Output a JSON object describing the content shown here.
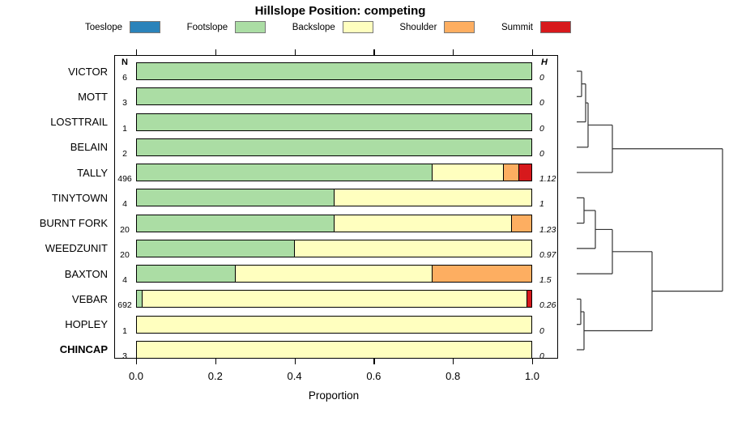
{
  "title": "Hillslope Position: competing",
  "legend": [
    {
      "label": "Toeslope",
      "color": "#2B83BA"
    },
    {
      "label": "Footslope",
      "color": "#ABDDA4"
    },
    {
      "label": "Backslope",
      "color": "#FFFFBF"
    },
    {
      "label": "Shoulder",
      "color": "#FDAE61"
    },
    {
      "label": "Summit",
      "color": "#D7191C"
    }
  ],
  "columns": {
    "n_header": "N",
    "h_header": "H"
  },
  "axis": {
    "label": "Proportion",
    "tick_labels": [
      "0.0",
      "0.2",
      "0.4",
      "0.6",
      "0.8",
      "1.0"
    ],
    "tick_values": [
      0,
      0.2,
      0.4,
      0.6,
      0.8,
      1.0
    ],
    "range": [
      0,
      1
    ]
  },
  "chart_data": {
    "type": "bar",
    "orientation": "horizontal-stacked",
    "title": "Hillslope Position: competing",
    "xlabel": "Proportion",
    "xlim": [
      0,
      1
    ],
    "grid": false,
    "legend_position": "top",
    "stack_order": [
      "Toeslope",
      "Footslope",
      "Backslope",
      "Shoulder",
      "Summit"
    ],
    "colors": {
      "Toeslope": "#2B83BA",
      "Footslope": "#ABDDA4",
      "Backslope": "#FFFFBF",
      "Shoulder": "#FDAE61",
      "Summit": "#D7191C"
    },
    "rows": [
      {
        "name": "VICTOR",
        "n": "6",
        "h": "0",
        "bold": false,
        "segments": {
          "Footslope": 1.0
        }
      },
      {
        "name": "MOTT",
        "n": "3",
        "h": "0",
        "bold": false,
        "segments": {
          "Footslope": 1.0
        }
      },
      {
        "name": "LOSTTRAIL",
        "n": "1",
        "h": "0",
        "bold": false,
        "segments": {
          "Footslope": 1.0
        }
      },
      {
        "name": "BELAIN",
        "n": "2",
        "h": "0",
        "bold": false,
        "segments": {
          "Footslope": 1.0
        }
      },
      {
        "name": "TALLY",
        "n": "496",
        "h": "1.12",
        "bold": false,
        "segments": {
          "Footslope": 0.75,
          "Backslope": 0.18,
          "Shoulder": 0.04,
          "Summit": 0.03
        }
      },
      {
        "name": "TINYTOWN",
        "n": "4",
        "h": "1",
        "bold": false,
        "segments": {
          "Footslope": 0.5,
          "Backslope": 0.5
        }
      },
      {
        "name": "BURNT FORK",
        "n": "20",
        "h": "1.23",
        "bold": false,
        "segments": {
          "Footslope": 0.5,
          "Backslope": 0.45,
          "Shoulder": 0.05
        }
      },
      {
        "name": "WEEDZUNIT",
        "n": "20",
        "h": "0.97",
        "bold": false,
        "segments": {
          "Footslope": 0.4,
          "Backslope": 0.6
        }
      },
      {
        "name": "BAXTON",
        "n": "4",
        "h": "1.5",
        "bold": false,
        "segments": {
          "Footslope": 0.25,
          "Backslope": 0.5,
          "Shoulder": 0.25
        }
      },
      {
        "name": "VEBAR",
        "n": "692",
        "h": "0.26",
        "bold": false,
        "segments": {
          "Footslope": 0.015,
          "Backslope": 0.975,
          "Summit": 0.01
        }
      },
      {
        "name": "HOPLEY",
        "n": "1",
        "h": "0",
        "bold": false,
        "segments": {
          "Backslope": 1.0
        }
      },
      {
        "name": "CHINCAP",
        "n": "3",
        "h": "0",
        "bold": true,
        "segments": {
          "Backslope": 1.0
        }
      }
    ],
    "dendrogram": {
      "line_color": "#333333",
      "segments": [
        [
          712,
          0,
          718,
          0
        ],
        [
          712,
          1,
          718,
          1
        ],
        [
          718,
          0,
          718,
          1
        ],
        [
          718,
          0.5,
          723,
          0.5
        ],
        [
          712,
          2,
          723,
          2
        ],
        [
          723,
          0.5,
          723,
          2
        ],
        [
          723,
          1.25,
          726,
          1.25
        ],
        [
          712,
          3,
          726,
          3
        ],
        [
          726,
          1.25,
          726,
          3
        ],
        [
          726,
          2.125,
          756,
          2.125
        ],
        [
          712,
          4,
          756,
          4
        ],
        [
          756,
          2.125,
          756,
          4
        ],
        [
          756,
          3.0625,
          892,
          3.0625
        ],
        [
          712,
          5,
          721,
          5
        ],
        [
          712,
          6,
          721,
          6
        ],
        [
          721,
          5,
          721,
          6
        ],
        [
          721,
          5.5,
          735,
          5.5
        ],
        [
          712,
          7,
          735,
          7
        ],
        [
          735,
          5.5,
          735,
          7
        ],
        [
          735,
          6.25,
          756,
          6.25
        ],
        [
          712,
          8,
          756,
          8
        ],
        [
          756,
          6.25,
          756,
          8
        ],
        [
          756,
          7.125,
          805,
          7.125
        ],
        [
          712,
          9,
          717,
          9
        ],
        [
          712,
          10,
          717,
          10
        ],
        [
          717,
          9,
          717,
          10
        ],
        [
          717,
          9.5,
          721,
          9.5
        ],
        [
          712,
          11,
          721,
          11
        ],
        [
          721,
          9.5,
          721,
          11
        ],
        [
          721,
          10.25,
          805,
          10.25
        ],
        [
          805,
          7.125,
          805,
          10.25
        ],
        [
          805,
          8.6875,
          892,
          8.6875
        ],
        [
          892,
          3.0625,
          892,
          8.6875
        ]
      ]
    }
  }
}
